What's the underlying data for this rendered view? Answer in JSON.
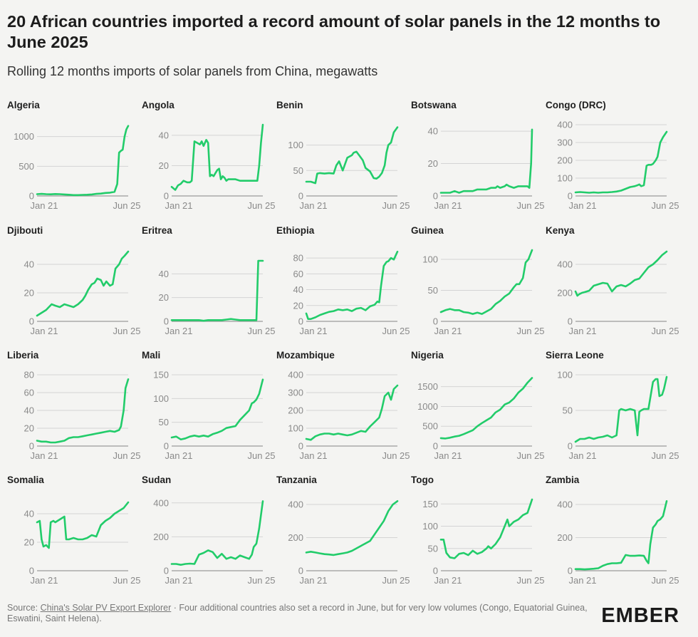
{
  "header": {
    "title": "20 African countries imported a record amount of solar panels in the 12 months to June 2025",
    "subtitle": "Rolling 12 months imports of solar panels from China, megawatts"
  },
  "footer": {
    "source_prefix": "Source: ",
    "source_link": "China's Solar PV Export Explorer",
    "note": " · Four additional countries also set a record in June, but for very low volumes (Congo, Equatorial Guinea, Eswatini, Saint Helena)."
  },
  "logo": {
    "text": "EMBER"
  },
  "colors": {
    "line": "#22cc6a",
    "grid": "#d4d4d4",
    "axis": "#9a9a9a",
    "tick": "#8a8a8a",
    "label": "#1f1f1f"
  },
  "chart_data": [
    {
      "type": "line",
      "title": "Algeria",
      "x_labels": [
        "Jan 21",
        "Jun 25"
      ],
      "ylim": [
        0,
        1200
      ],
      "yticks": [
        0,
        500,
        1000
      ],
      "x": [
        0,
        0.05,
        0.1,
        0.15,
        0.2,
        0.25,
        0.3,
        0.35,
        0.4,
        0.45,
        0.5,
        0.55,
        0.6,
        0.65,
        0.7,
        0.72,
        0.75,
        0.8,
        0.85,
        0.88,
        0.9,
        0.92,
        0.94,
        0.96,
        0.98,
        1.0
      ],
      "values": [
        30,
        35,
        30,
        28,
        32,
        30,
        25,
        20,
        15,
        15,
        18,
        20,
        25,
        35,
        40,
        45,
        50,
        55,
        70,
        200,
        730,
        760,
        780,
        1000,
        1120,
        1180
      ]
    },
    {
      "type": "line",
      "title": "Angola",
      "x_labels": [
        "Jan 21",
        "Jun 25"
      ],
      "ylim": [
        0,
        47
      ],
      "yticks": [
        0,
        20,
        40
      ],
      "x": [
        0,
        0.04,
        0.07,
        0.1,
        0.13,
        0.17,
        0.2,
        0.22,
        0.25,
        0.28,
        0.31,
        0.33,
        0.35,
        0.38,
        0.4,
        0.42,
        0.44,
        0.46,
        0.48,
        0.5,
        0.52,
        0.54,
        0.56,
        0.58,
        0.6,
        0.62,
        0.65,
        0.7,
        0.75,
        0.8,
        0.85,
        0.9,
        0.94,
        0.96,
        0.98,
        1.0
      ],
      "values": [
        6,
        4,
        7,
        8,
        10,
        9,
        9,
        10,
        36,
        35,
        34,
        36,
        33,
        37,
        35,
        13,
        14,
        13,
        15,
        17,
        18,
        11,
        13,
        12,
        10,
        11,
        11,
        11,
        10,
        10,
        10,
        10,
        10,
        20,
        35,
        47
      ]
    },
    {
      "type": "line",
      "title": "Benin",
      "x_labels": [
        "Jan 21",
        "Jun 25"
      ],
      "ylim": [
        0,
        140
      ],
      "yticks": [
        0,
        50,
        100
      ],
      "x": [
        0,
        0.05,
        0.1,
        0.12,
        0.15,
        0.2,
        0.25,
        0.3,
        0.33,
        0.36,
        0.4,
        0.45,
        0.5,
        0.52,
        0.55,
        0.58,
        0.62,
        0.65,
        0.7,
        0.74,
        0.77,
        0.8,
        0.83,
        0.86,
        0.88,
        0.9,
        0.93,
        0.96,
        1.0
      ],
      "values": [
        28,
        28,
        25,
        44,
        45,
        44,
        45,
        44,
        60,
        68,
        50,
        75,
        80,
        85,
        87,
        80,
        70,
        55,
        48,
        35,
        34,
        38,
        45,
        60,
        85,
        100,
        105,
        125,
        135
      ]
    },
    {
      "type": "line",
      "title": "Botswana",
      "x_labels": [
        "Jan 21",
        "Jun 25"
      ],
      "ylim": [
        0,
        44
      ],
      "yticks": [
        0,
        20,
        40
      ],
      "x": [
        0,
        0.05,
        0.1,
        0.15,
        0.2,
        0.25,
        0.3,
        0.35,
        0.4,
        0.45,
        0.5,
        0.55,
        0.6,
        0.62,
        0.65,
        0.7,
        0.72,
        0.75,
        0.8,
        0.85,
        0.9,
        0.95,
        0.97,
        0.99,
        1.0
      ],
      "values": [
        2,
        2,
        2,
        3,
        2,
        3,
        3,
        3,
        4,
        4,
        4,
        5,
        5,
        6,
        5,
        6,
        7,
        6,
        5,
        6,
        6,
        6,
        5,
        20,
        41
      ]
    },
    {
      "type": "line",
      "title": "Congo (DRC)",
      "x_labels": [
        "Jan 21",
        "Jun 25"
      ],
      "ylim": [
        0,
        400
      ],
      "yticks": [
        0,
        100,
        200,
        300,
        400
      ],
      "x": [
        0,
        0.05,
        0.1,
        0.15,
        0.2,
        0.25,
        0.3,
        0.35,
        0.4,
        0.45,
        0.5,
        0.55,
        0.6,
        0.65,
        0.68,
        0.7,
        0.72,
        0.75,
        0.78,
        0.8,
        0.83,
        0.85,
        0.88,
        0.9,
        0.93,
        0.96,
        1.0
      ],
      "values": [
        20,
        22,
        20,
        18,
        20,
        18,
        20,
        20,
        22,
        25,
        30,
        40,
        50,
        55,
        60,
        65,
        55,
        60,
        170,
        175,
        175,
        180,
        200,
        220,
        300,
        330,
        360
      ]
    },
    {
      "type": "line",
      "title": "Djibouti",
      "x_labels": [
        "Jan 21",
        "Jun 25"
      ],
      "ylim": [
        0,
        50
      ],
      "yticks": [
        0,
        20,
        40
      ],
      "x": [
        0,
        0.05,
        0.1,
        0.13,
        0.16,
        0.2,
        0.25,
        0.3,
        0.35,
        0.4,
        0.45,
        0.5,
        0.53,
        0.56,
        0.6,
        0.63,
        0.66,
        0.7,
        0.73,
        0.76,
        0.8,
        0.83,
        0.86,
        0.9,
        0.93,
        0.96,
        1.0
      ],
      "values": [
        4,
        6,
        8,
        10,
        12,
        11,
        10,
        12,
        11,
        10,
        12,
        15,
        18,
        22,
        26,
        27,
        30,
        29,
        25,
        28,
        25,
        26,
        37,
        40,
        44,
        46,
        49
      ]
    },
    {
      "type": "line",
      "title": "Eritrea",
      "x_labels": [
        "Jan 21",
        "Jun 25"
      ],
      "ylim": [
        0,
        60
      ],
      "yticks": [
        0,
        20,
        40
      ],
      "x": [
        0,
        0.1,
        0.2,
        0.3,
        0.35,
        0.4,
        0.45,
        0.5,
        0.55,
        0.6,
        0.65,
        0.7,
        0.75,
        0.8,
        0.85,
        0.9,
        0.93,
        0.95,
        0.97,
        1.0
      ],
      "values": [
        1,
        1,
        1,
        1,
        0.5,
        1,
        1,
        1,
        1,
        1.5,
        2,
        1.5,
        1,
        1,
        1,
        1,
        1,
        51,
        51,
        51
      ]
    },
    {
      "type": "line",
      "title": "Ethiopia",
      "x_labels": [
        "Jan 21",
        "Jun 25"
      ],
      "ylim": [
        0,
        90
      ],
      "yticks": [
        0,
        20,
        40,
        60,
        80
      ],
      "x": [
        0,
        0.02,
        0.05,
        0.1,
        0.15,
        0.2,
        0.25,
        0.3,
        0.35,
        0.4,
        0.45,
        0.5,
        0.55,
        0.6,
        0.65,
        0.7,
        0.75,
        0.78,
        0.8,
        0.82,
        0.85,
        0.88,
        0.9,
        0.93,
        0.96,
        1.0
      ],
      "values": [
        10,
        3,
        3,
        5,
        8,
        10,
        12,
        13,
        15,
        14,
        15,
        13,
        16,
        17,
        14,
        19,
        21,
        25,
        24,
        45,
        70,
        75,
        76,
        80,
        78,
        88
      ]
    },
    {
      "type": "line",
      "title": "Guinea",
      "x_labels": [
        "Jan 21",
        "Jun 25"
      ],
      "ylim": [
        0,
        115
      ],
      "yticks": [
        0,
        50,
        100
      ],
      "x": [
        0,
        0.05,
        0.1,
        0.15,
        0.2,
        0.25,
        0.3,
        0.35,
        0.4,
        0.45,
        0.5,
        0.55,
        0.6,
        0.65,
        0.7,
        0.75,
        0.8,
        0.83,
        0.86,
        0.9,
        0.93,
        0.96,
        1.0
      ],
      "values": [
        15,
        18,
        20,
        18,
        18,
        15,
        14,
        12,
        14,
        12,
        16,
        20,
        28,
        33,
        40,
        45,
        55,
        60,
        60,
        70,
        95,
        100,
        115
      ]
    },
    {
      "type": "line",
      "title": "Kenya",
      "x_labels": [
        "Jan 21",
        "Jun 25"
      ],
      "ylim": [
        0,
        500
      ],
      "yticks": [
        0,
        200,
        400
      ],
      "x": [
        0,
        0.02,
        0.04,
        0.07,
        0.1,
        0.15,
        0.2,
        0.25,
        0.3,
        0.35,
        0.4,
        0.45,
        0.5,
        0.55,
        0.6,
        0.65,
        0.7,
        0.75,
        0.8,
        0.85,
        0.9,
        0.95,
        1.0
      ],
      "values": [
        210,
        180,
        190,
        200,
        205,
        215,
        250,
        260,
        270,
        265,
        210,
        245,
        255,
        245,
        265,
        290,
        300,
        340,
        380,
        400,
        430,
        465,
        490
      ]
    },
    {
      "type": "line",
      "title": "Liberia",
      "x_labels": [
        "Jan 21",
        "Jun 25"
      ],
      "ylim": [
        0,
        80
      ],
      "yticks": [
        0,
        20,
        40,
        60,
        80
      ],
      "x": [
        0,
        0.05,
        0.1,
        0.15,
        0.2,
        0.25,
        0.3,
        0.35,
        0.4,
        0.45,
        0.5,
        0.55,
        0.6,
        0.65,
        0.7,
        0.75,
        0.8,
        0.85,
        0.9,
        0.92,
        0.95,
        0.97,
        1.0
      ],
      "values": [
        6,
        5,
        5,
        4,
        4,
        5,
        6,
        9,
        10,
        10,
        11,
        12,
        13,
        14,
        15,
        16,
        17,
        16,
        18,
        22,
        40,
        65,
        75
      ]
    },
    {
      "type": "line",
      "title": "Mali",
      "x_labels": [
        "Jan 21",
        "Jun 25"
      ],
      "ylim": [
        0,
        150
      ],
      "yticks": [
        0,
        50,
        100,
        150
      ],
      "x": [
        0,
        0.05,
        0.1,
        0.15,
        0.2,
        0.25,
        0.3,
        0.35,
        0.4,
        0.45,
        0.5,
        0.55,
        0.6,
        0.65,
        0.7,
        0.75,
        0.8,
        0.85,
        0.88,
        0.9,
        0.93,
        0.96,
        1.0
      ],
      "values": [
        18,
        20,
        14,
        16,
        20,
        22,
        20,
        22,
        20,
        25,
        28,
        32,
        38,
        40,
        42,
        55,
        65,
        75,
        90,
        92,
        98,
        110,
        140
      ]
    },
    {
      "type": "line",
      "title": "Mozambique",
      "x_labels": [
        "Jan 21",
        "Jun 25"
      ],
      "ylim": [
        0,
        400
      ],
      "yticks": [
        0,
        100,
        200,
        300,
        400
      ],
      "x": [
        0,
        0.05,
        0.1,
        0.15,
        0.2,
        0.25,
        0.3,
        0.35,
        0.4,
        0.45,
        0.5,
        0.55,
        0.6,
        0.65,
        0.7,
        0.75,
        0.8,
        0.83,
        0.86,
        0.9,
        0.93,
        0.96,
        1.0
      ],
      "values": [
        40,
        35,
        55,
        65,
        70,
        70,
        65,
        70,
        65,
        60,
        65,
        75,
        85,
        80,
        110,
        135,
        160,
        210,
        280,
        300,
        260,
        320,
        340
      ]
    },
    {
      "type": "line",
      "title": "Nigeria",
      "x_labels": [
        "Jan 21",
        "Jun 25"
      ],
      "ylim": [
        0,
        1800
      ],
      "yticks": [
        0,
        500,
        1000,
        1500
      ],
      "x": [
        0,
        0.05,
        0.1,
        0.15,
        0.2,
        0.25,
        0.3,
        0.35,
        0.4,
        0.45,
        0.5,
        0.55,
        0.6,
        0.65,
        0.7,
        0.75,
        0.8,
        0.85,
        0.9,
        0.95,
        1.0
      ],
      "values": [
        200,
        190,
        210,
        240,
        260,
        300,
        350,
        400,
        500,
        580,
        650,
        720,
        850,
        920,
        1050,
        1100,
        1200,
        1350,
        1450,
        1600,
        1720
      ]
    },
    {
      "type": "line",
      "title": "Sierra Leone",
      "x_labels": [
        "Jan 21",
        "Jun 25"
      ],
      "ylim": [
        0,
        100
      ],
      "yticks": [
        0,
        50,
        100
      ],
      "x": [
        0,
        0.05,
        0.1,
        0.15,
        0.2,
        0.25,
        0.3,
        0.35,
        0.4,
        0.45,
        0.48,
        0.5,
        0.55,
        0.6,
        0.65,
        0.68,
        0.7,
        0.72,
        0.75,
        0.8,
        0.85,
        0.88,
        0.9,
        0.92,
        0.95,
        0.97,
        1.0
      ],
      "values": [
        6,
        10,
        10,
        12,
        10,
        12,
        13,
        15,
        12,
        15,
        50,
        52,
        50,
        52,
        50,
        15,
        48,
        50,
        52,
        52,
        90,
        94,
        94,
        70,
        72,
        80,
        97
      ]
    },
    {
      "type": "line",
      "title": "Somalia",
      "x_labels": [
        "Jan 21",
        "Jun 25"
      ],
      "ylim": [
        0,
        50
      ],
      "yticks": [
        0,
        20,
        40
      ],
      "x": [
        0,
        0.03,
        0.05,
        0.07,
        0.1,
        0.13,
        0.15,
        0.18,
        0.2,
        0.25,
        0.3,
        0.32,
        0.35,
        0.4,
        0.45,
        0.5,
        0.55,
        0.6,
        0.65,
        0.7,
        0.75,
        0.8,
        0.85,
        0.9,
        0.95,
        1.0
      ],
      "values": [
        34,
        35,
        22,
        17,
        18,
        16,
        34,
        35,
        34,
        36,
        38,
        22,
        22,
        23,
        22,
        22,
        23,
        25,
        24,
        32,
        35,
        37,
        40,
        42,
        44,
        48
      ]
    },
    {
      "type": "line",
      "title": "Sudan",
      "x_labels": [
        "Jan 21",
        "Jun 25"
      ],
      "ylim": [
        0,
        420
      ],
      "yticks": [
        0,
        200,
        400
      ],
      "x": [
        0,
        0.05,
        0.1,
        0.15,
        0.2,
        0.25,
        0.3,
        0.35,
        0.4,
        0.45,
        0.5,
        0.55,
        0.6,
        0.65,
        0.7,
        0.75,
        0.8,
        0.85,
        0.88,
        0.9,
        0.93,
        0.96,
        1.0
      ],
      "values": [
        40,
        40,
        35,
        40,
        42,
        40,
        95,
        105,
        120,
        110,
        75,
        100,
        70,
        80,
        70,
        90,
        80,
        70,
        95,
        140,
        160,
        250,
        410
      ]
    },
    {
      "type": "line",
      "title": "Tanzania",
      "x_labels": [
        "Jan 21",
        "Jun 25"
      ],
      "ylim": [
        0,
        430
      ],
      "yticks": [
        0,
        200,
        400
      ],
      "x": [
        0,
        0.05,
        0.1,
        0.15,
        0.2,
        0.25,
        0.3,
        0.35,
        0.4,
        0.45,
        0.5,
        0.55,
        0.6,
        0.65,
        0.7,
        0.75,
        0.8,
        0.85,
        0.9,
        0.95,
        1.0
      ],
      "values": [
        110,
        115,
        110,
        105,
        100,
        98,
        95,
        100,
        105,
        110,
        120,
        135,
        150,
        165,
        180,
        220,
        260,
        300,
        360,
        400,
        420
      ]
    },
    {
      "type": "line",
      "title": "Togo",
      "x_labels": [
        "Jan 21",
        "Jun 25"
      ],
      "ylim": [
        0,
        160
      ],
      "yticks": [
        0,
        50,
        100,
        150
      ],
      "x": [
        0,
        0.03,
        0.06,
        0.1,
        0.15,
        0.2,
        0.25,
        0.3,
        0.35,
        0.4,
        0.45,
        0.5,
        0.52,
        0.55,
        0.6,
        0.65,
        0.7,
        0.73,
        0.75,
        0.8,
        0.85,
        0.9,
        0.95,
        1.0
      ],
      "values": [
        70,
        70,
        40,
        30,
        28,
        38,
        40,
        35,
        45,
        38,
        42,
        50,
        55,
        50,
        60,
        75,
        100,
        115,
        100,
        110,
        115,
        125,
        130,
        160
      ]
    },
    {
      "type": "line",
      "title": "Zambia",
      "x_labels": [
        "Jan 21",
        "Jun 25"
      ],
      "ylim": [
        0,
        430
      ],
      "yticks": [
        0,
        200,
        400
      ],
      "x": [
        0,
        0.05,
        0.1,
        0.15,
        0.2,
        0.25,
        0.3,
        0.35,
        0.4,
        0.45,
        0.5,
        0.55,
        0.6,
        0.65,
        0.7,
        0.75,
        0.78,
        0.8,
        0.82,
        0.85,
        0.88,
        0.9,
        0.93,
        0.96,
        1.0
      ],
      "values": [
        10,
        10,
        8,
        10,
        12,
        15,
        30,
        40,
        45,
        45,
        48,
        95,
        90,
        90,
        92,
        90,
        60,
        45,
        160,
        260,
        280,
        300,
        310,
        330,
        420
      ]
    }
  ]
}
